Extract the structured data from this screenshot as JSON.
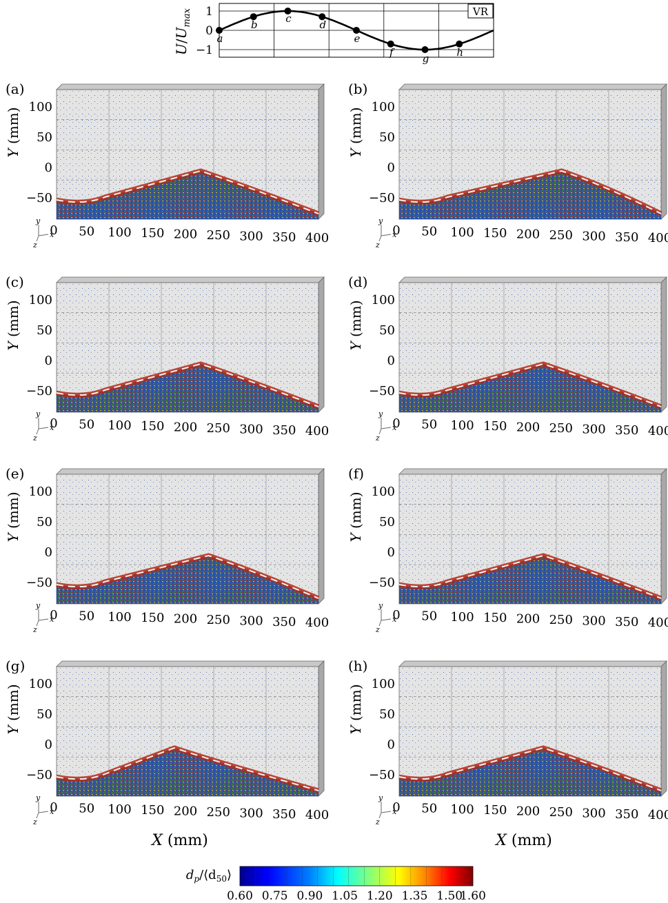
{
  "velocity_chart": {
    "ylabel": "U/U_max",
    "ylabel_main": "U",
    "ylabel_denom": "U",
    "ylabel_sub": "max",
    "yticks": [
      "1",
      "0",
      "−1"
    ],
    "legend_label": "VR",
    "phase_points": [
      {
        "label": "a",
        "phase": 0.0,
        "value": 0.0
      },
      {
        "label": "b",
        "phase": 0.125,
        "value": 0.707
      },
      {
        "label": "c",
        "phase": 0.25,
        "value": 1.0
      },
      {
        "label": "d",
        "phase": 0.375,
        "value": 0.707
      },
      {
        "label": "e",
        "phase": 0.5,
        "value": 0.0
      },
      {
        "label": "f",
        "phase": 0.625,
        "value": -0.707
      },
      {
        "label": "g",
        "phase": 0.75,
        "value": -1.0
      },
      {
        "label": "h",
        "phase": 0.875,
        "value": -0.707
      }
    ],
    "colors": {
      "curve": "#000000",
      "grid": "#000000"
    }
  },
  "panels": [
    {
      "label": "(a)",
      "letter": "a"
    },
    {
      "label": "(b)",
      "letter": "b"
    },
    {
      "label": "(c)",
      "letter": "c"
    },
    {
      "label": "(d)",
      "letter": "d"
    },
    {
      "label": "(e)",
      "letter": "e"
    },
    {
      "label": "(f)",
      "letter": "f"
    },
    {
      "label": "(g)",
      "letter": "g"
    },
    {
      "label": "(h)",
      "letter": "h"
    }
  ],
  "panel_axes": {
    "ylabel": "Y (mm)",
    "ylabel_var": "Y",
    "ylabel_unit": " (mm)",
    "xlabel": "X (mm)",
    "xlabel_var": "X",
    "xlabel_unit": " (mm)",
    "yticks": [
      "100",
      "50",
      "0",
      "−50"
    ],
    "xticks": [
      "0",
      "50",
      "100",
      "150",
      "200",
      "250",
      "300",
      "350",
      "400"
    ],
    "triad": {
      "y": "y",
      "x": "x",
      "z": "z"
    }
  },
  "colorbar": {
    "label": "d_p/⟨d_50⟩",
    "label_main": "d",
    "label_sub": "p",
    "label_mid": "/⟨d",
    "label_sub2": "50",
    "label_end": "⟩",
    "ticks": [
      "0.60",
      "0.75",
      "0.90",
      "1.05",
      "1.20",
      "1.35",
      "1.50",
      "1.60"
    ],
    "range": [
      0.6,
      1.6
    ],
    "colormap": "jet",
    "colors": [
      "#00008f",
      "#0000ff",
      "#0080ff",
      "#00ffff",
      "#80ff80",
      "#ffff00",
      "#ff8000",
      "#ff0000",
      "#800000"
    ]
  },
  "colors": {
    "background_box": "#dcdcdc",
    "bed_base": "#3a4f8f",
    "bed_edge": "#b22a18",
    "vortex": "#f5f5f5"
  }
}
